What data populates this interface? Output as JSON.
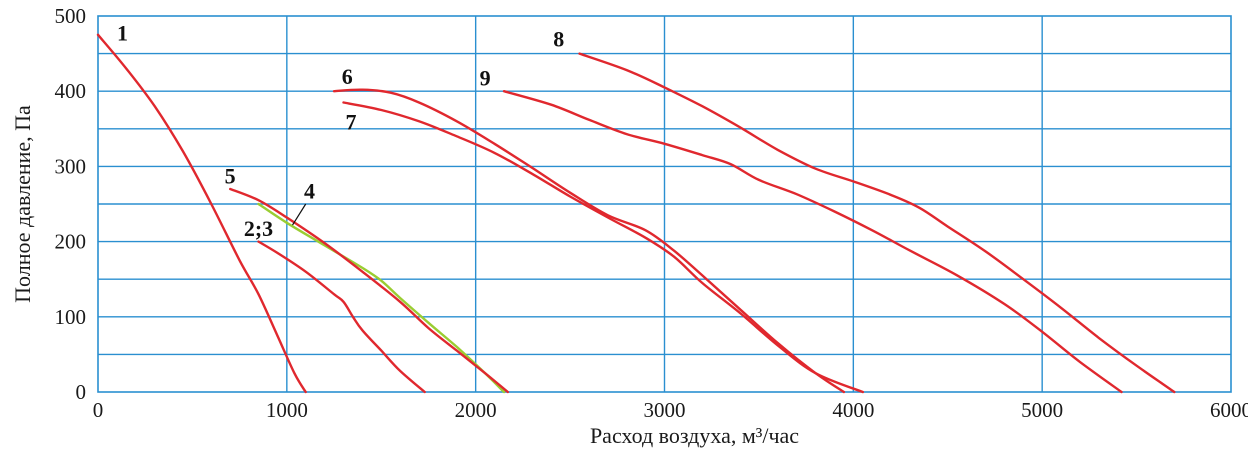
{
  "chart_data": {
    "type": "line",
    "xlabel": "Расход воздуха, м³/час",
    "ylabel": "Полное давление, Па",
    "xlim": [
      0,
      6000
    ],
    "ylim": [
      0,
      500
    ],
    "x_ticks": [
      0,
      1000,
      2000,
      3000,
      4000,
      5000,
      6000
    ],
    "y_ticks": [
      0,
      100,
      200,
      300,
      400,
      500
    ],
    "x_grid_step": 1000,
    "y_grid_step": 50,
    "grid": true,
    "colors": {
      "grid": "#2a8fd0",
      "curve": "#e0282e",
      "curve_4": "#9acd32",
      "text": "#111111"
    },
    "series": [
      {
        "name": "1",
        "color": "#e0282e",
        "points": [
          [
            0,
            475
          ],
          [
            150,
            430
          ],
          [
            300,
            380
          ],
          [
            450,
            320
          ],
          [
            600,
            250
          ],
          [
            750,
            175
          ],
          [
            850,
            130
          ],
          [
            950,
            75
          ],
          [
            1040,
            25
          ],
          [
            1100,
            0
          ]
        ],
        "label_at": [
          130,
          478
        ]
      },
      {
        "name": "2;3",
        "color": "#e0282e",
        "points": [
          [
            850,
            200
          ],
          [
            950,
            185
          ],
          [
            1100,
            160
          ],
          [
            1250,
            130
          ],
          [
            1300,
            120
          ],
          [
            1350,
            100
          ],
          [
            1400,
            82
          ],
          [
            1500,
            55
          ],
          [
            1600,
            28
          ],
          [
            1730,
            0
          ]
        ],
        "label_at": [
          850,
          218
        ]
      },
      {
        "name": "4",
        "color": "#9acd32",
        "points": [
          [
            850,
            250
          ],
          [
            1000,
            225
          ],
          [
            1200,
            195
          ],
          [
            1400,
            165
          ],
          [
            1500,
            148
          ],
          [
            1600,
            125
          ],
          [
            1750,
            92
          ],
          [
            1900,
            60
          ],
          [
            2050,
            25
          ],
          [
            2150,
            0
          ]
        ],
        "label_at": [
          1120,
          268
        ]
      },
      {
        "name": "5",
        "color": "#e0282e",
        "points": [
          [
            700,
            270
          ],
          [
            850,
            255
          ],
          [
            1000,
            232
          ],
          [
            1200,
            198
          ],
          [
            1400,
            160
          ],
          [
            1600,
            120
          ],
          [
            1750,
            85
          ],
          [
            1900,
            55
          ],
          [
            2050,
            25
          ],
          [
            2170,
            0
          ]
        ],
        "label_at": [
          700,
          288
        ]
      },
      {
        "name": "6",
        "color": "#e0282e",
        "points": [
          [
            1250,
            400
          ],
          [
            1400,
            402
          ],
          [
            1550,
            398
          ],
          [
            1700,
            385
          ],
          [
            1900,
            360
          ],
          [
            2100,
            330
          ],
          [
            2300,
            298
          ],
          [
            2500,
            265
          ],
          [
            2700,
            235
          ],
          [
            2900,
            215
          ],
          [
            3050,
            188
          ],
          [
            3200,
            155
          ],
          [
            3400,
            110
          ],
          [
            3600,
            65
          ],
          [
            3800,
            25
          ],
          [
            3950,
            0
          ]
        ],
        "label_at": [
          1320,
          420
        ]
      },
      {
        "name": "7",
        "color": "#e0282e",
        "points": [
          [
            1300,
            385
          ],
          [
            1500,
            375
          ],
          [
            1700,
            360
          ],
          [
            1900,
            340
          ],
          [
            2100,
            318
          ],
          [
            2300,
            290
          ],
          [
            2500,
            260
          ],
          [
            2700,
            232
          ],
          [
            2900,
            205
          ],
          [
            3050,
            180
          ],
          [
            3200,
            145
          ],
          [
            3400,
            105
          ],
          [
            3600,
            62
          ],
          [
            3800,
            25
          ],
          [
            4050,
            0
          ]
        ],
        "label_at": [
          1340,
          360
        ]
      },
      {
        "name": "8",
        "color": "#e0282e",
        "points": [
          [
            2550,
            450
          ],
          [
            2800,
            428
          ],
          [
            3000,
            405
          ],
          [
            3200,
            380
          ],
          [
            3400,
            352
          ],
          [
            3600,
            322
          ],
          [
            3800,
            297
          ],
          [
            4000,
            280
          ],
          [
            4200,
            262
          ],
          [
            4350,
            245
          ],
          [
            4500,
            220
          ],
          [
            4700,
            187
          ],
          [
            4900,
            150
          ],
          [
            5100,
            112
          ],
          [
            5300,
            72
          ],
          [
            5500,
            35
          ],
          [
            5700,
            0
          ]
        ],
        "label_at": [
          2440,
          470
        ]
      },
      {
        "name": "9",
        "color": "#e0282e",
        "points": [
          [
            2150,
            400
          ],
          [
            2400,
            382
          ],
          [
            2600,
            362
          ],
          [
            2800,
            343
          ],
          [
            3000,
            330
          ],
          [
            3200,
            315
          ],
          [
            3350,
            303
          ],
          [
            3500,
            282
          ],
          [
            3700,
            263
          ],
          [
            3900,
            240
          ],
          [
            4100,
            215
          ],
          [
            4300,
            188
          ],
          [
            4550,
            155
          ],
          [
            4800,
            117
          ],
          [
            5000,
            80
          ],
          [
            5200,
            40
          ],
          [
            5420,
            0
          ]
        ],
        "label_at": [
          2050,
          418
        ]
      }
    ]
  }
}
